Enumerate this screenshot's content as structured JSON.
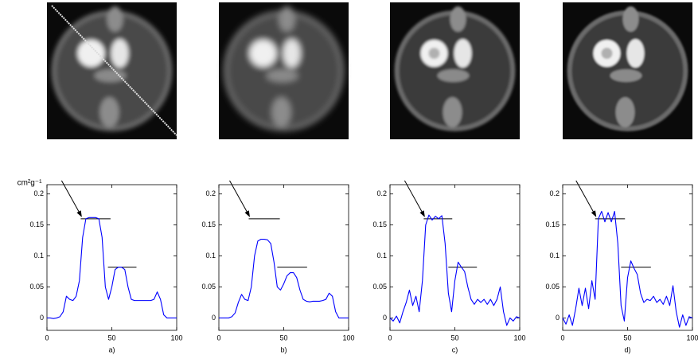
{
  "chart_data": [
    {
      "type": "line",
      "label": "a)",
      "ylabel": "cm²g⁻¹",
      "x": [
        0,
        2.5,
        5,
        7.5,
        10,
        12.5,
        15,
        17.5,
        20,
        22.5,
        25,
        27.5,
        30,
        32.5,
        35,
        37.5,
        40,
        42.5,
        45,
        47.5,
        50,
        52.5,
        55,
        57.5,
        60,
        62.5,
        65,
        67.5,
        70,
        72.5,
        75,
        77.5,
        80,
        82.5,
        85,
        87.5,
        90,
        92.5,
        95,
        97.5,
        100
      ],
      "series": [
        {
          "color": "#0000ff",
          "values": [
            0,
            0,
            -0.001,
            0,
            0.002,
            0.01,
            0.035,
            0.03,
            0.028,
            0.035,
            0.06,
            0.13,
            0.16,
            0.162,
            0.162,
            0.162,
            0.16,
            0.13,
            0.05,
            0.03,
            0.05,
            0.078,
            0.082,
            0.082,
            0.078,
            0.05,
            0.03,
            0.028,
            0.028,
            0.028,
            0.028,
            0.028,
            0.028,
            0.03,
            0.042,
            0.03,
            0.005,
            0,
            0,
            0,
            0
          ]
        }
      ],
      "reference_lines": [
        {
          "y": 0.16,
          "x": [
            26,
            49
          ]
        },
        {
          "y": 0.082,
          "x": [
            47,
            69
          ]
        }
      ],
      "xlim": [
        0,
        100
      ],
      "xticks": [
        0,
        50,
        100
      ],
      "ylim": [
        -0.02,
        0.215
      ],
      "yticks": [
        0,
        0.05,
        0.1,
        0.15,
        0.2
      ]
    },
    {
      "type": "line",
      "label": "b)",
      "x": [
        0,
        2.5,
        5,
        7.5,
        10,
        12.5,
        15,
        17.5,
        20,
        22.5,
        25,
        27.5,
        30,
        32.5,
        35,
        37.5,
        40,
        42.5,
        45,
        47.5,
        50,
        52.5,
        55,
        57.5,
        60,
        62.5,
        65,
        67.5,
        70,
        72.5,
        75,
        77.5,
        80,
        82.5,
        85,
        87.5,
        90,
        92.5,
        95,
        97.5,
        100
      ],
      "series": [
        {
          "color": "#0000ff",
          "values": [
            0,
            0,
            0,
            0,
            0.002,
            0.008,
            0.025,
            0.038,
            0.03,
            0.028,
            0.05,
            0.1,
            0.124,
            0.127,
            0.127,
            0.126,
            0.12,
            0.09,
            0.05,
            0.045,
            0.055,
            0.068,
            0.073,
            0.073,
            0.065,
            0.045,
            0.03,
            0.027,
            0.026,
            0.027,
            0.027,
            0.027,
            0.028,
            0.03,
            0.04,
            0.035,
            0.01,
            0,
            0,
            0,
            0
          ]
        }
      ],
      "reference_lines": [
        {
          "y": 0.16,
          "x": [
            23,
            47
          ]
        },
        {
          "y": 0.082,
          "x": [
            45,
            68
          ]
        }
      ],
      "xlim": [
        0,
        100
      ],
      "xticks": [
        0,
        50,
        100
      ],
      "ylim": [
        -0.02,
        0.215
      ],
      "yticks": [
        0,
        0.05,
        0.1,
        0.15,
        0.2
      ]
    },
    {
      "type": "line",
      "label": "c)",
      "x": [
        0,
        2.5,
        5,
        7.5,
        10,
        12.5,
        15,
        17.5,
        20,
        22.5,
        25,
        27.5,
        30,
        32.5,
        35,
        37.5,
        40,
        42.5,
        45,
        47.5,
        50,
        52.5,
        55,
        57.5,
        60,
        62.5,
        65,
        67.5,
        70,
        72.5,
        75,
        77.5,
        80,
        82.5,
        85,
        87.5,
        90,
        92.5,
        95,
        97.5,
        100
      ],
      "series": [
        {
          "color": "#0000ff",
          "values": [
            0,
            -0.005,
            0.003,
            -0.008,
            0.01,
            0.025,
            0.045,
            0.02,
            0.035,
            0.01,
            0.06,
            0.15,
            0.166,
            0.158,
            0.164,
            0.16,
            0.165,
            0.12,
            0.04,
            0.01,
            0.06,
            0.09,
            0.082,
            0.075,
            0.05,
            0.03,
            0.022,
            0.03,
            0.025,
            0.03,
            0.022,
            0.03,
            0.02,
            0.03,
            0.05,
            0.01,
            -0.012,
            0,
            -0.005,
            0.002,
            0
          ]
        }
      ],
      "reference_lines": [
        {
          "y": 0.16,
          "x": [
            26,
            48
          ]
        },
        {
          "y": 0.082,
          "x": [
            45,
            67
          ]
        }
      ],
      "xlim": [
        0,
        100
      ],
      "xticks": [
        0,
        50,
        100
      ],
      "ylim": [
        -0.02,
        0.215
      ],
      "yticks": [
        0,
        0.05,
        0.1,
        0.15,
        0.2
      ]
    },
    {
      "type": "line",
      "label": "d)",
      "x": [
        0,
        2.5,
        5,
        7.5,
        10,
        12.5,
        15,
        17.5,
        20,
        22.5,
        25,
        27.5,
        30,
        32.5,
        35,
        37.5,
        40,
        42.5,
        45,
        47.5,
        50,
        52.5,
        55,
        57.5,
        60,
        62.5,
        65,
        67.5,
        70,
        72.5,
        75,
        77.5,
        80,
        82.5,
        85,
        87.5,
        90,
        92.5,
        95,
        97.5,
        100
      ],
      "series": [
        {
          "color": "#0000ff",
          "values": [
            0,
            -0.01,
            0.005,
            -0.012,
            0.015,
            0.048,
            0.02,
            0.048,
            0.015,
            0.06,
            0.03,
            0.16,
            0.172,
            0.155,
            0.17,
            0.155,
            0.172,
            0.12,
            0.02,
            -0.005,
            0.065,
            0.092,
            0.08,
            0.07,
            0.04,
            0.025,
            0.03,
            0.028,
            0.035,
            0.025,
            0.03,
            0.022,
            0.035,
            0.02,
            0.052,
            0.01,
            -0.015,
            0.005,
            -0.012,
            0.002,
            0
          ]
        }
      ],
      "reference_lines": [
        {
          "y": 0.16,
          "x": [
            25,
            48
          ]
        },
        {
          "y": 0.082,
          "x": [
            45,
            68
          ]
        }
      ],
      "xlim": [
        0,
        100
      ],
      "xticks": [
        0,
        50,
        100
      ],
      "ylim": [
        -0.02,
        0.215
      ],
      "yticks": [
        0,
        0.05,
        0.1,
        0.15,
        0.2
      ]
    }
  ]
}
